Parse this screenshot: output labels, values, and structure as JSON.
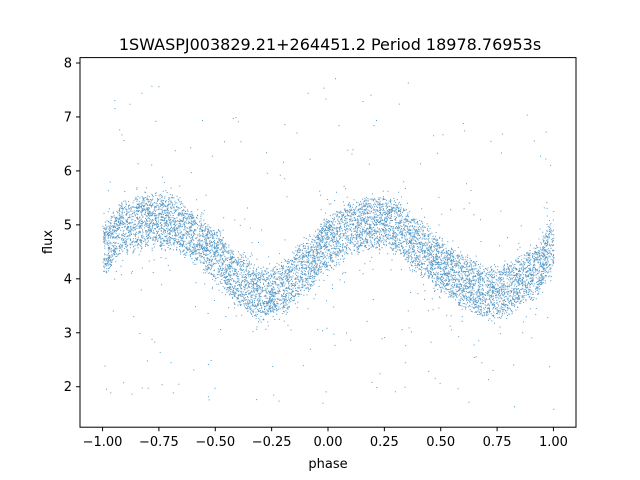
{
  "chart_data": {
    "type": "scatter",
    "title": "1SWASPJ003829.21+264451.2 Period 18978.76953s",
    "xlabel": "phase",
    "ylabel": "flux",
    "xlim": [
      -1.1,
      1.1
    ],
    "ylim": [
      1.25,
      8.1
    ],
    "xticks": [
      -1.0,
      -0.75,
      -0.5,
      -0.25,
      0.0,
      0.25,
      0.5,
      0.75,
      1.0
    ],
    "xtick_labels": [
      "−1.00",
      "−0.75",
      "−0.50",
      "−0.25",
      "0.00",
      "0.25",
      "0.50",
      "0.75",
      "1.00"
    ],
    "yticks": [
      2,
      3,
      4,
      5,
      6,
      7,
      8
    ],
    "ytick_labels": [
      "2",
      "3",
      "4",
      "5",
      "6",
      "7",
      "8"
    ],
    "grid": false,
    "legend": "none",
    "marker_color": "#1f77b4",
    "series": [
      {
        "phase": [
          -1.0,
          -0.9,
          -0.8,
          -0.75,
          -0.7,
          -0.6,
          -0.5,
          -0.4,
          -0.3,
          -0.25,
          -0.2,
          -0.1,
          0.0,
          0.1,
          0.2,
          0.25,
          0.3,
          0.4,
          0.5,
          0.6,
          0.7,
          0.75,
          0.8,
          0.9,
          1.0
        ],
        "flux_center": [
          4.6,
          4.95,
          5.1,
          5.1,
          5.05,
          4.8,
          4.45,
          4.0,
          3.75,
          3.75,
          3.85,
          4.25,
          4.65,
          4.95,
          5.05,
          5.05,
          4.95,
          4.6,
          4.25,
          3.95,
          3.75,
          3.75,
          3.85,
          4.1,
          4.6
        ],
        "band_halfwidth": 0.55,
        "flux_min": 1.55,
        "flux_max": 7.75
      }
    ]
  }
}
